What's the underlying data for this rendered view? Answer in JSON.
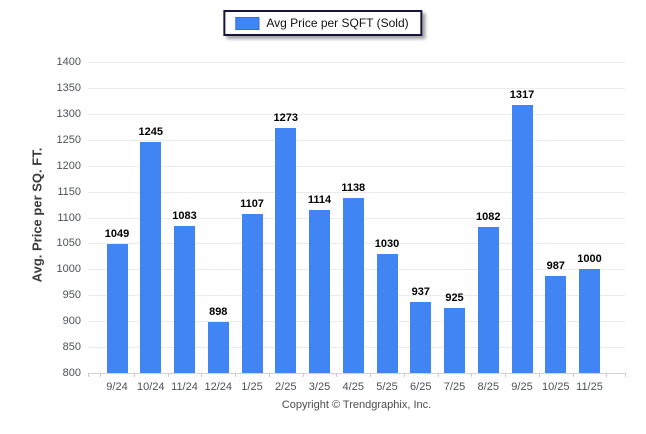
{
  "chart_data": {
    "type": "bar",
    "legend_label": "Avg Price per SQFT (Sold)",
    "ylabel": "Avg. Price per SQ. FT.",
    "categories": [
      "9/24",
      "10/24",
      "11/24",
      "12/24",
      "1/25",
      "2/25",
      "3/25",
      "4/25",
      "5/25",
      "6/25",
      "7/25",
      "8/25",
      "9/25",
      "10/25",
      "11/25"
    ],
    "values": [
      1049,
      1245,
      1083,
      898,
      1107,
      1273,
      1114,
      1138,
      1030,
      937,
      925,
      1082,
      1317,
      987,
      1000
    ],
    "ylim": [
      800,
      1400
    ],
    "ytick_step": 50,
    "grid": true,
    "legend_position": "top-center",
    "bar_color": "#4184f3"
  },
  "footer": {
    "copyright": "Copyright © Trendgraphix, Inc."
  }
}
